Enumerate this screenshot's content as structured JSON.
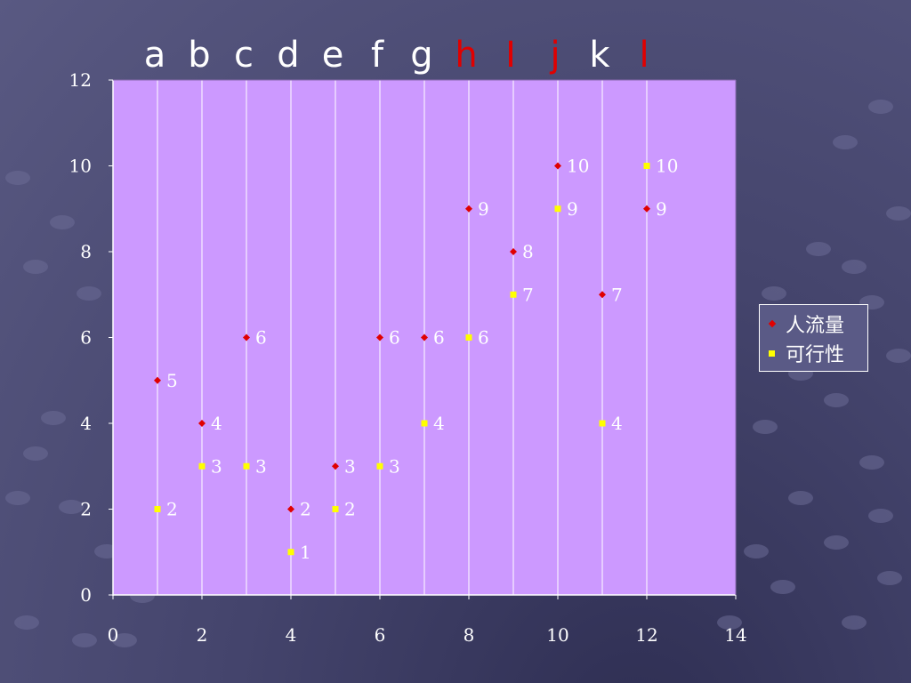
{
  "colors": {
    "plot_background": "#cc99ff",
    "gridline": "#ffffff",
    "axis": "#ffffff",
    "text": "#ffffff",
    "letter_normal": "#ffffff",
    "letter_highlight": "#e00000",
    "series_renliuliang": "#e00000",
    "series_kexingxing": "#ffff00"
  },
  "column_letters": [
    {
      "text": "a",
      "highlight": false
    },
    {
      "text": "b",
      "highlight": false
    },
    {
      "text": "c",
      "highlight": false
    },
    {
      "text": "d",
      "highlight": false
    },
    {
      "text": "e",
      "highlight": false
    },
    {
      "text": "f",
      "highlight": false
    },
    {
      "text": "g",
      "highlight": false
    },
    {
      "text": "h",
      "highlight": true
    },
    {
      "text": "I",
      "highlight": true
    },
    {
      "text": "j",
      "highlight": true
    },
    {
      "text": "k",
      "highlight": false
    },
    {
      "text": "l",
      "highlight": true
    }
  ],
  "chart_data": {
    "type": "scatter",
    "title": "",
    "xlabel": "",
    "ylabel": "",
    "xlim": [
      0,
      14
    ],
    "ylim": [
      0,
      12
    ],
    "x_ticks": [
      0,
      2,
      4,
      6,
      8,
      10,
      12,
      14
    ],
    "y_ticks": [
      0,
      2,
      4,
      6,
      8,
      10,
      12
    ],
    "x_tick_labels": [
      "0",
      "2",
      "4",
      "6",
      "8",
      "10",
      "12",
      "14"
    ],
    "y_tick_labels": [
      "0",
      "2",
      "4",
      "6",
      "8",
      "10",
      "12"
    ],
    "vertical_gridlines_x": [
      1,
      2,
      3,
      4,
      5,
      6,
      7,
      8,
      9,
      10,
      11,
      12
    ],
    "legend_position": "right",
    "series": [
      {
        "name": "人流量",
        "marker": "diamond",
        "color": "#e00000",
        "points": [
          {
            "x": 1,
            "y": 5,
            "label": "5"
          },
          {
            "x": 2,
            "y": 4,
            "label": "4"
          },
          {
            "x": 3,
            "y": 6,
            "label": "6"
          },
          {
            "x": 4,
            "y": 2,
            "label": "2"
          },
          {
            "x": 5,
            "y": 3,
            "label": "3"
          },
          {
            "x": 6,
            "y": 6,
            "label": "6"
          },
          {
            "x": 7,
            "y": 6,
            "label": "6"
          },
          {
            "x": 8,
            "y": 9,
            "label": "9"
          },
          {
            "x": 9,
            "y": 8,
            "label": "8"
          },
          {
            "x": 10,
            "y": 10,
            "label": "10"
          },
          {
            "x": 11,
            "y": 7,
            "label": "7"
          },
          {
            "x": 12,
            "y": 9,
            "label": "9"
          }
        ]
      },
      {
        "name": "可行性",
        "marker": "square",
        "color": "#ffff00",
        "points": [
          {
            "x": 1,
            "y": 2,
            "label": "2"
          },
          {
            "x": 2,
            "y": 3,
            "label": "3"
          },
          {
            "x": 3,
            "y": 3,
            "label": "3"
          },
          {
            "x": 4,
            "y": 1,
            "label": "1"
          },
          {
            "x": 5,
            "y": 2,
            "label": "2"
          },
          {
            "x": 6,
            "y": 3,
            "label": "3"
          },
          {
            "x": 7,
            "y": 4,
            "label": "4"
          },
          {
            "x": 8,
            "y": 6,
            "label": "6"
          },
          {
            "x": 9,
            "y": 7,
            "label": "7"
          },
          {
            "x": 10,
            "y": 9,
            "label": "9"
          },
          {
            "x": 11,
            "y": 4,
            "label": "4"
          },
          {
            "x": 12,
            "y": 10,
            "label": "10"
          }
        ]
      }
    ]
  }
}
